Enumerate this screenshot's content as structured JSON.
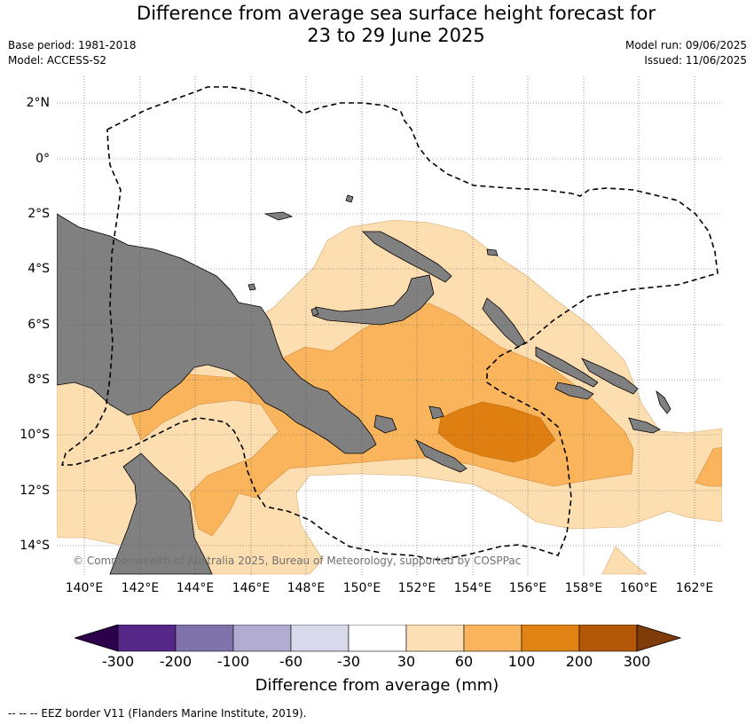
{
  "title_line1": "Difference from average sea surface height forecast for",
  "title_line2": "23 to 29 June 2025",
  "base_period": "Base period: 1981-2018",
  "model": "Model: ACCESS-S2",
  "model_run": "Model run: 09/06/2025",
  "issued": "Issued: 11/06/2025",
  "map": {
    "latitude_labels": [
      "2°N",
      "0°",
      "2°S",
      "4°S",
      "6°S",
      "8°S",
      "10°S",
      "12°S",
      "14°S"
    ],
    "longitude_labels": [
      "140°E",
      "142°E",
      "144°E",
      "146°E",
      "148°E",
      "150°E",
      "152°E",
      "154°E",
      "156°E",
      "158°E",
      "160°E",
      "162°E"
    ],
    "copyright": "© Commonwealth of Australia 2025, Bureau of Meteorology, supported by COSPPac",
    "land_color": "#808080",
    "contour_colors": {
      "30_to_60": "#fddeb1",
      "60_to_100": "#f9b45c",
      "100_to_200": "#df7f12"
    }
  },
  "colorbar": {
    "title": "Difference from average (mm)",
    "ticks": [
      "-300",
      "-200",
      "-100",
      "-60",
      "-30",
      "30",
      "60",
      "100",
      "200",
      "300"
    ],
    "colors": [
      "#2d004b",
      "#542788",
      "#8073ac",
      "#b2abd2",
      "#d8daeb",
      "#ffffff",
      "#fee0b6",
      "#f9b45c",
      "#e08214",
      "#b35806",
      "#7f3b08"
    ]
  },
  "legend_footnote": "-- -- -- EEZ border V11 (Flanders Marine Institute, 2019)."
}
